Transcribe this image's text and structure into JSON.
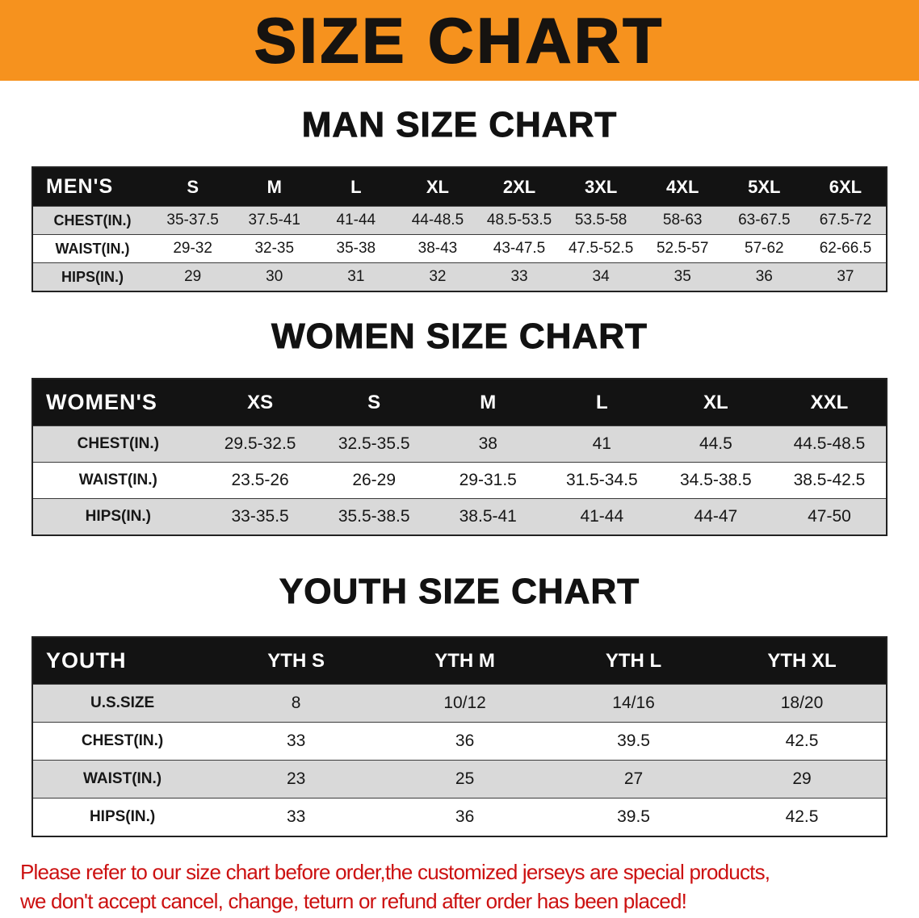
{
  "banner": {
    "title": "SIZE CHART",
    "bg_color": "#f6921e",
    "text_color": "#161310"
  },
  "sections": {
    "men": {
      "heading": "MAN SIZE CHART",
      "table": {
        "header": [
          "MEN'S",
          "S",
          "M",
          "L",
          "XL",
          "2XL",
          "3XL",
          "4XL",
          "5XL",
          "6XL"
        ],
        "rows": [
          [
            "CHEST(IN.)",
            "35-37.5",
            "37.5-41",
            "41-44",
            "44-48.5",
            "48.5-53.5",
            "53.5-58",
            "58-63",
            "63-67.5",
            "67.5-72"
          ],
          [
            "WAIST(IN.)",
            "29-32",
            "32-35",
            "35-38",
            "38-43",
            "43-47.5",
            "47.5-52.5",
            "52.5-57",
            "57-62",
            "62-66.5"
          ],
          [
            "HIPS(IN.)",
            "29",
            "30",
            "31",
            "32",
            "33",
            "34",
            "35",
            "36",
            "37"
          ]
        ]
      }
    },
    "women": {
      "heading": "WOMEN SIZE CHART",
      "table": {
        "header": [
          "WOMEN'S",
          "XS",
          "S",
          "M",
          "L",
          "XL",
          "XXL"
        ],
        "rows": [
          [
            "CHEST(IN.)",
            "29.5-32.5",
            "32.5-35.5",
            "38",
            "41",
            "44.5",
            "44.5-48.5"
          ],
          [
            "WAIST(IN.)",
            "23.5-26",
            "26-29",
            "29-31.5",
            "31.5-34.5",
            "34.5-38.5",
            "38.5-42.5"
          ],
          [
            "HIPS(IN.)",
            "33-35.5",
            "35.5-38.5",
            "38.5-41",
            "41-44",
            "44-47",
            "47-50"
          ]
        ]
      }
    },
    "youth": {
      "heading": "YOUTH SIZE CHART",
      "table": {
        "header": [
          "YOUTH",
          "YTH S",
          "YTH M",
          "YTH L",
          "YTH XL"
        ],
        "rows": [
          [
            "U.S.SIZE",
            "8",
            "10/12",
            "14/16",
            "18/20"
          ],
          [
            "CHEST(IN.)",
            "33",
            "36",
            "39.5",
            "42.5"
          ],
          [
            "WAIST(IN.)",
            "23",
            "25",
            "27",
            "29"
          ],
          [
            "HIPS(IN.)",
            "33",
            "36",
            "39.5",
            "42.5"
          ]
        ]
      }
    }
  },
  "disclaimer": {
    "line1": "Please refer to our size chart before order,the customized jerseys are special products,",
    "line2": "we don't accept cancel, change, teturn or refund after order has been placed!",
    "text_color": "#cc1111"
  }
}
